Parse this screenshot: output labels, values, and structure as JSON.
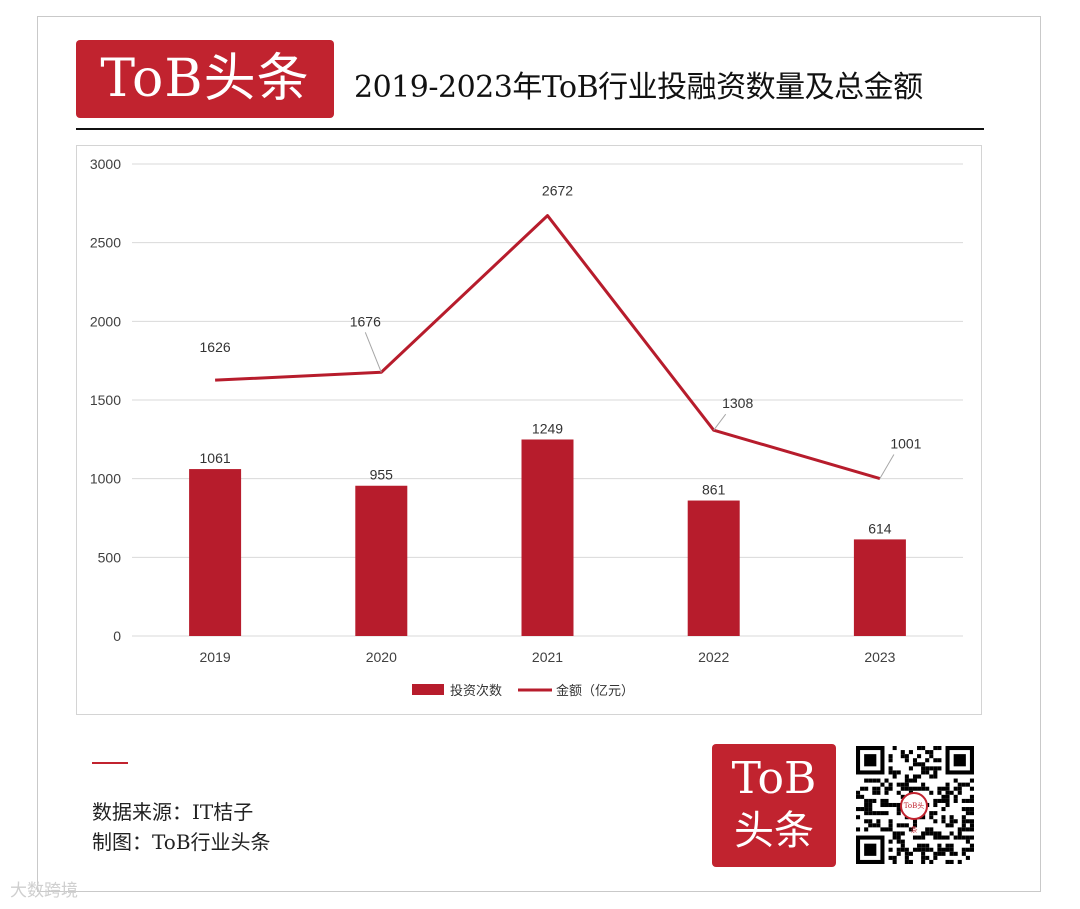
{
  "header": {
    "logo_text": "ToB头条",
    "title": "2019-2023年ToB行业投融资数量及总金额"
  },
  "chart_data": {
    "type": "bar",
    "categories": [
      "2019",
      "2020",
      "2021",
      "2022",
      "2023"
    ],
    "series": [
      {
        "name": "投资次数",
        "type": "bar",
        "values": [
          1061,
          955,
          1249,
          861,
          614
        ]
      },
      {
        "name": "金额（亿元）",
        "type": "line",
        "values": [
          1626,
          1676,
          2672,
          1308,
          1001
        ]
      }
    ],
    "ylim": [
      0,
      3000
    ],
    "yticks": [
      "0",
      "500",
      "1000",
      "1500",
      "2000",
      "2500",
      "3000"
    ],
    "grid": true,
    "legend_position": "bottom",
    "colors": {
      "bar": "#b71c2c",
      "line": "#b71c2c",
      "grid": "#d9d9d9",
      "label_leader": "#a6a6a6"
    }
  },
  "footer": {
    "source": "数据来源：IT桔子",
    "credit": "制图：ToB行业头条",
    "logo_line1": "ToB",
    "logo_line2": "头条",
    "qr_badge": "ToB头条",
    "watermark": "大数跨境"
  }
}
